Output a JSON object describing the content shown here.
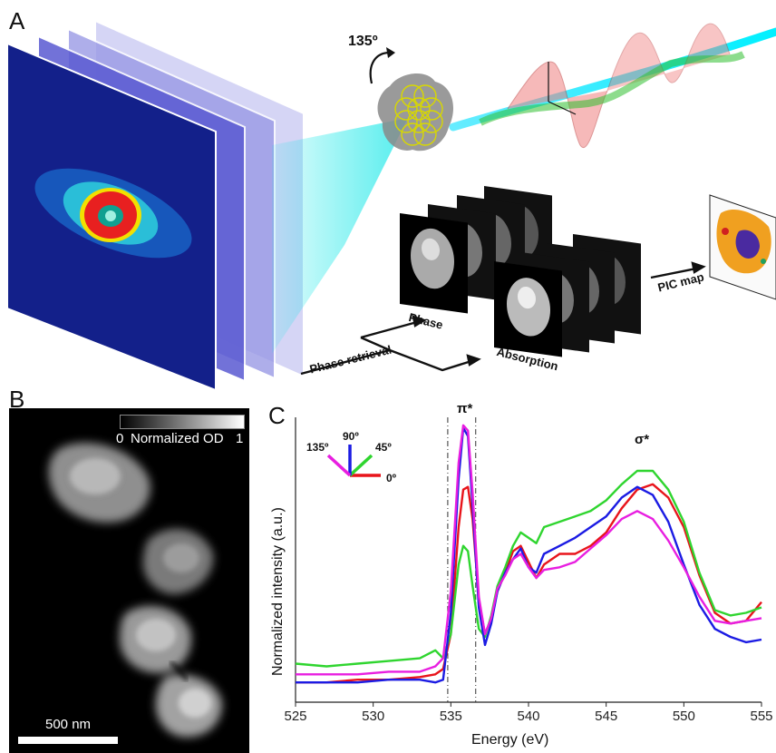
{
  "panel_letters": {
    "a": "A",
    "b": "B",
    "c": "C"
  },
  "panel_a": {
    "rotation_label": "135º",
    "phase_retrieval_label": "Phase retrieval",
    "phase_label": "Phase",
    "absorption_label": "Absorption",
    "pic_map_label": "PIC map"
  },
  "panel_b": {
    "colorbar_min": "0",
    "colorbar_title": "Normalized OD",
    "colorbar_max": "1",
    "scalebar_label": "500 nm"
  },
  "chart_data": {
    "type": "line",
    "xlabel": "Energy (eV)",
    "ylabel": "Normalized intensity (a.u.)",
    "xlim": [
      525,
      555
    ],
    "xticks": [
      525,
      530,
      535,
      540,
      545,
      550,
      555
    ],
    "ylim": [
      0,
      1
    ],
    "peak_labels": {
      "pi": "π*",
      "sigma": "σ*"
    },
    "vlines": [
      534.8,
      536.6
    ],
    "legend": {
      "a135": "135º",
      "a90": "90º",
      "a45": "45º",
      "a0": "0º"
    },
    "series": [
      {
        "name": "0º",
        "color": "#e8141b",
        "x": [
          525,
          527,
          529,
          531,
          533,
          534,
          534.5,
          535,
          535.5,
          535.8,
          536.1,
          536.4,
          536.8,
          537.2,
          537.6,
          538,
          538.5,
          539,
          539.5,
          540,
          540.5,
          541,
          542,
          543,
          544,
          545,
          546,
          547,
          548,
          549,
          550,
          551,
          552,
          553,
          554,
          555
        ],
        "y": [
          0.04,
          0.04,
          0.05,
          0.05,
          0.06,
          0.07,
          0.09,
          0.22,
          0.62,
          0.76,
          0.77,
          0.65,
          0.35,
          0.22,
          0.28,
          0.38,
          0.45,
          0.53,
          0.55,
          0.49,
          0.43,
          0.48,
          0.52,
          0.52,
          0.55,
          0.6,
          0.69,
          0.76,
          0.78,
          0.73,
          0.62,
          0.44,
          0.3,
          0.26,
          0.27,
          0.34
        ]
      },
      {
        "name": "45º",
        "color": "#2fd52f",
        "x": [
          525,
          527,
          529,
          531,
          533,
          534,
          534.5,
          535,
          535.5,
          535.8,
          536.1,
          536.4,
          536.8,
          537.2,
          537.6,
          538,
          538.5,
          539,
          539.5,
          540,
          540.5,
          541,
          542,
          543,
          544,
          545,
          546,
          547,
          548,
          549,
          550,
          551,
          552,
          553,
          554,
          555
        ],
        "y": [
          0.11,
          0.1,
          0.11,
          0.12,
          0.13,
          0.16,
          0.13,
          0.22,
          0.48,
          0.55,
          0.53,
          0.4,
          0.24,
          0.21,
          0.29,
          0.4,
          0.47,
          0.55,
          0.6,
          0.58,
          0.56,
          0.62,
          0.64,
          0.66,
          0.68,
          0.72,
          0.78,
          0.83,
          0.83,
          0.76,
          0.64,
          0.45,
          0.31,
          0.29,
          0.3,
          0.32
        ]
      },
      {
        "name": "90º",
        "color": "#1b1be3",
        "x": [
          525,
          527,
          529,
          531,
          533,
          534,
          534.5,
          535,
          535.5,
          535.8,
          536.1,
          536.4,
          536.8,
          537.2,
          537.6,
          538,
          538.5,
          539,
          539.5,
          540,
          540.5,
          541,
          542,
          543,
          544,
          545,
          546,
          547,
          548,
          549,
          550,
          551,
          552,
          553,
          554,
          555
        ],
        "y": [
          0.04,
          0.04,
          0.04,
          0.05,
          0.05,
          0.04,
          0.05,
          0.3,
          0.8,
          0.99,
          0.96,
          0.7,
          0.32,
          0.18,
          0.26,
          0.38,
          0.45,
          0.5,
          0.54,
          0.47,
          0.45,
          0.52,
          0.55,
          0.58,
          0.62,
          0.66,
          0.73,
          0.77,
          0.74,
          0.64,
          0.48,
          0.33,
          0.24,
          0.21,
          0.19,
          0.2
        ]
      },
      {
        "name": "135º",
        "color": "#e81ee0",
        "x": [
          525,
          527,
          529,
          531,
          533,
          534,
          534.5,
          535,
          535.5,
          535.8,
          536.1,
          536.4,
          536.8,
          537.2,
          537.6,
          538,
          538.5,
          539,
          539.5,
          540,
          540.5,
          541,
          542,
          543,
          544,
          545,
          546,
          547,
          548,
          549,
          550,
          551,
          552,
          553,
          554,
          555
        ],
        "y": [
          0.07,
          0.07,
          0.07,
          0.08,
          0.08,
          0.1,
          0.13,
          0.38,
          0.86,
          1.0,
          0.98,
          0.75,
          0.36,
          0.22,
          0.28,
          0.39,
          0.44,
          0.5,
          0.52,
          0.47,
          0.43,
          0.46,
          0.47,
          0.49,
          0.54,
          0.59,
          0.65,
          0.68,
          0.65,
          0.57,
          0.47,
          0.36,
          0.27,
          0.26,
          0.27,
          0.28
        ]
      }
    ]
  }
}
